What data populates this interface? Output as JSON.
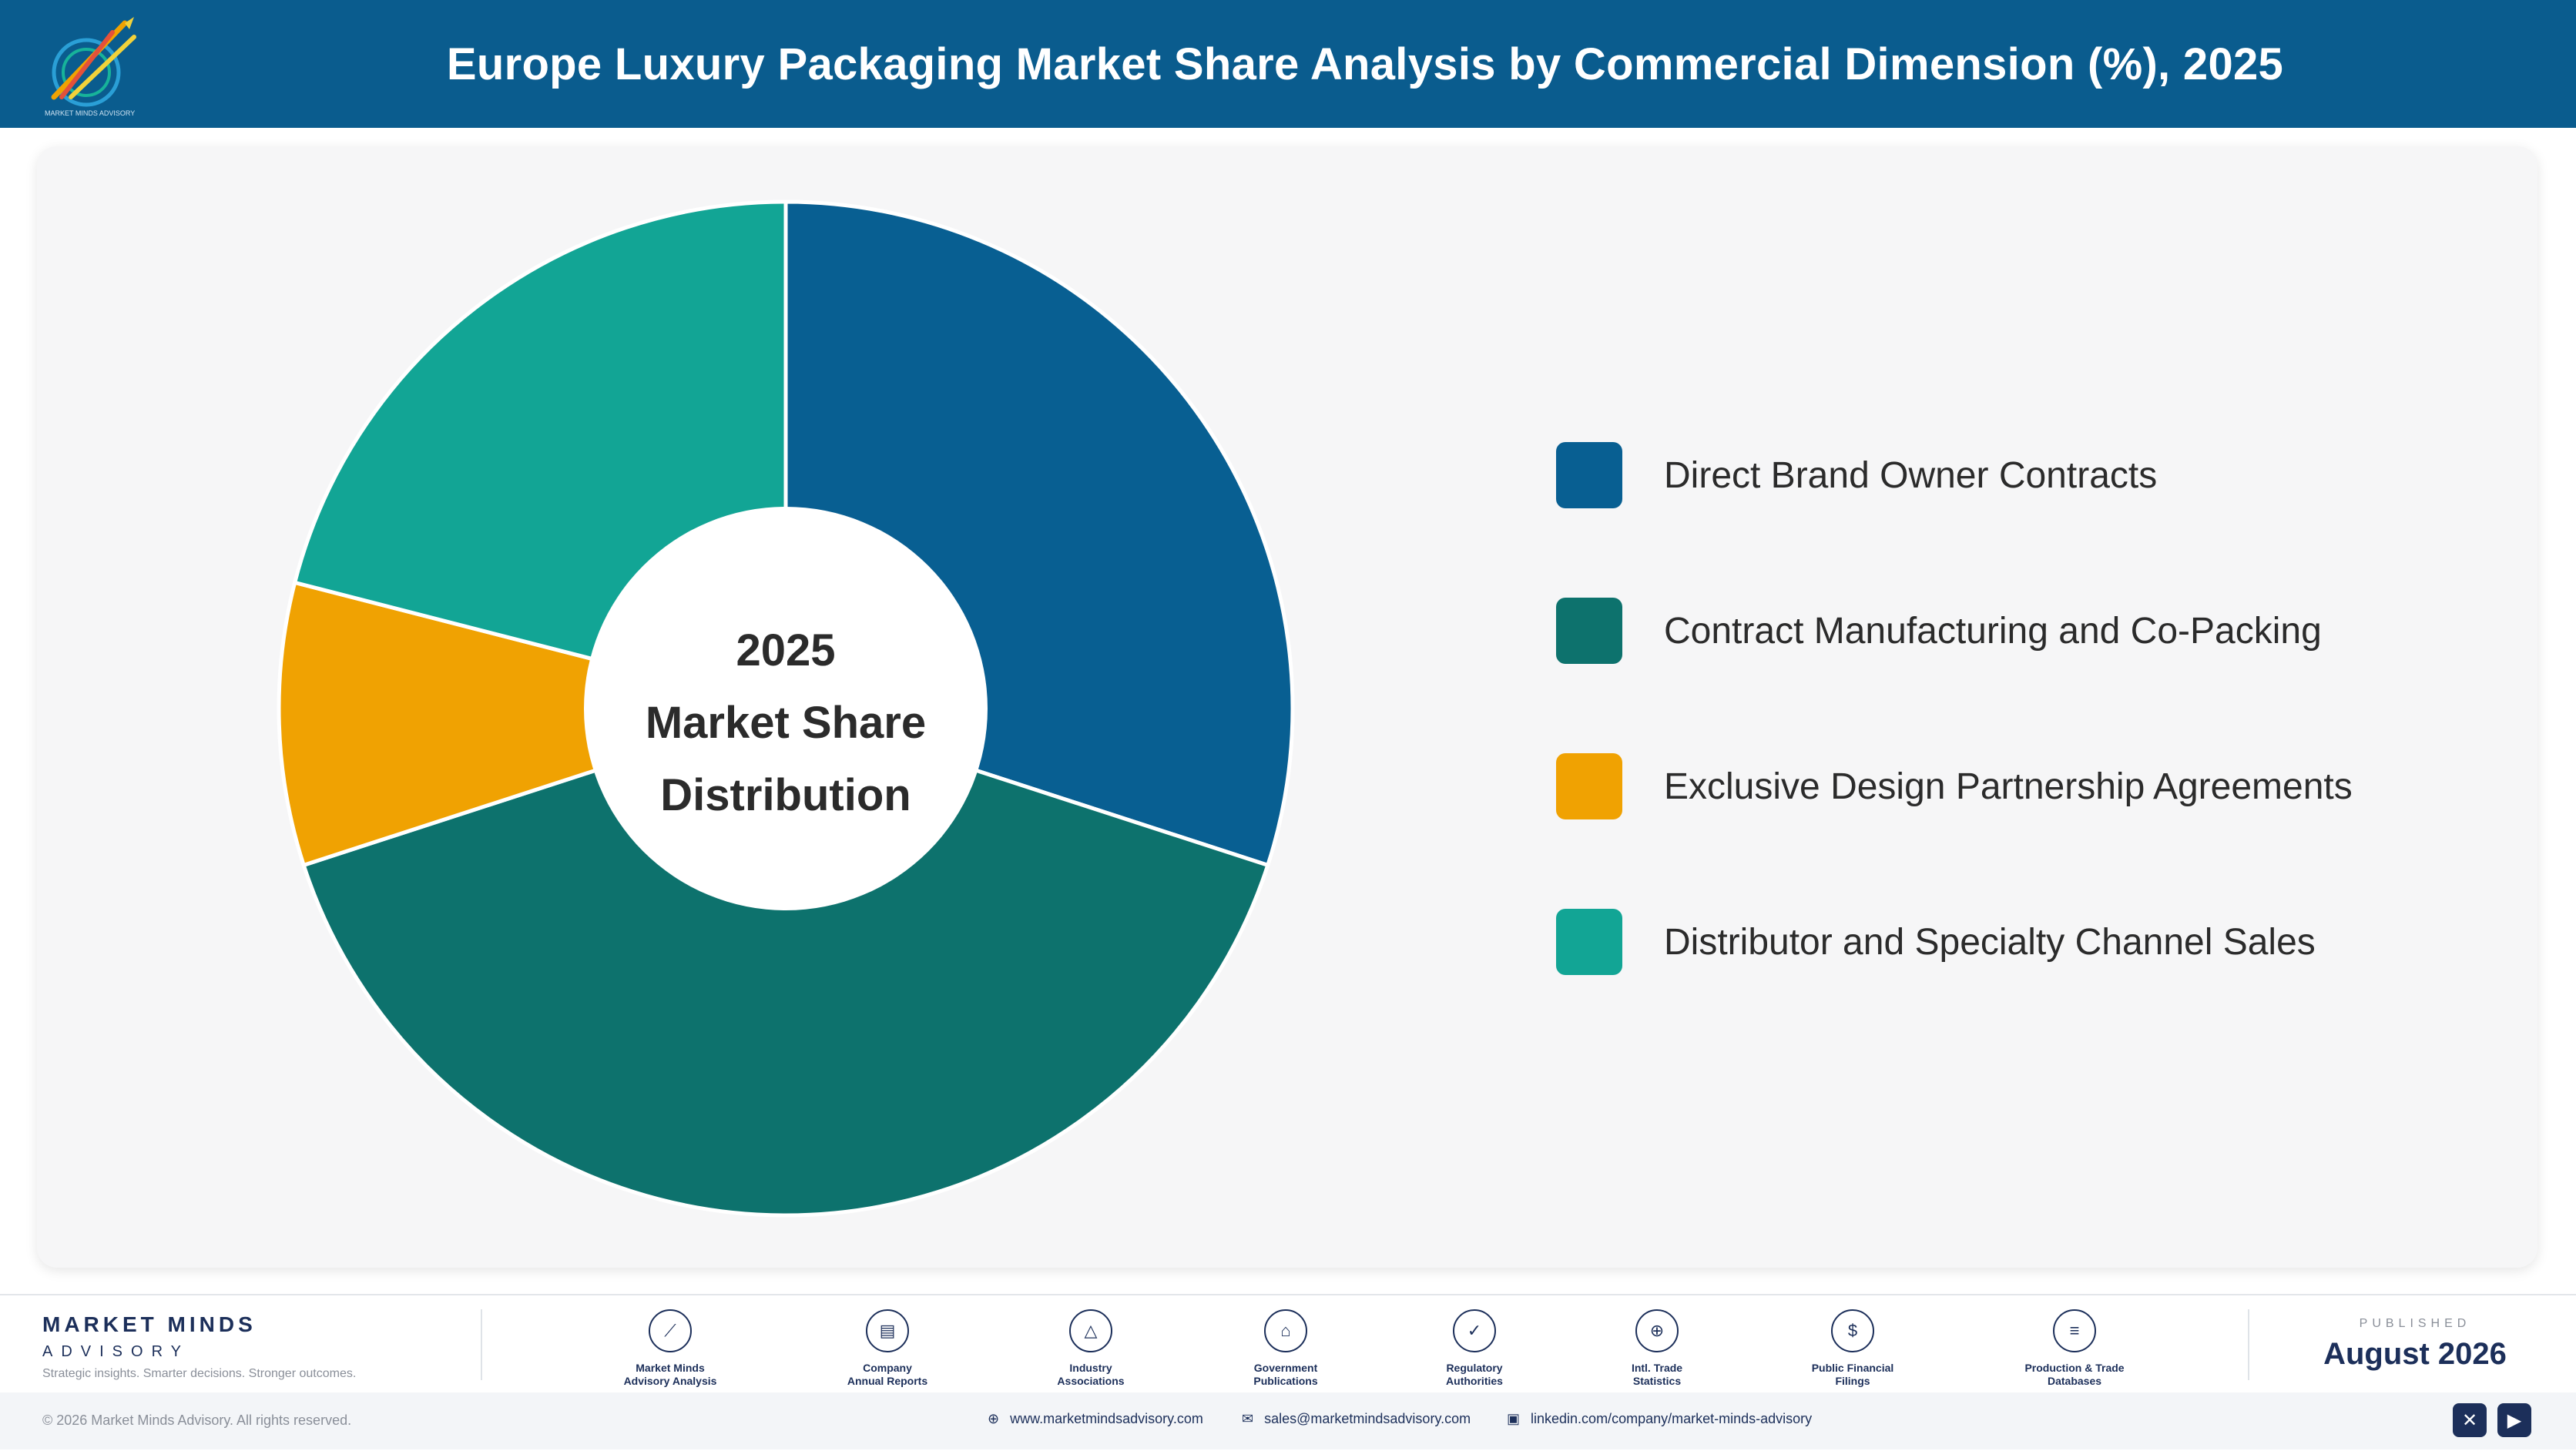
{
  "header": {
    "title": "Europe Luxury Packaging Market Share Analysis by Commercial Dimension (%), 2025",
    "logo_icon": "market-minds-logo",
    "logo_text": "MARKET MINDS ADVISORY"
  },
  "chart_data": {
    "type": "pie",
    "variant": "donut",
    "categories": [
      "Direct Brand Owner Contracts",
      "Contract Manufacturing and Co-Packing",
      "Exclusive Design Partnership Agreements",
      "Distributor and Specialty Channel Sales"
    ],
    "values": [
      30,
      40,
      9,
      21
    ],
    "colors": [
      "#085f92",
      "#0d726d",
      "#f0a202",
      "#12a595"
    ],
    "center_label": [
      "2025",
      "Market Share",
      "Distribution"
    ],
    "legend_position": "right"
  },
  "footer": {
    "brand_name": "MARKET MINDS",
    "brand_sub": "ADVISORY",
    "tagline": "Strategic insights. Smarter decisions. Stronger outcomes.",
    "sources": [
      {
        "label": "Market Minds\nAdvisory Analysis",
        "icon": "chart-line-icon",
        "glyph": "⟋"
      },
      {
        "label": "Company\nAnnual Reports",
        "icon": "document-icon",
        "glyph": "▤"
      },
      {
        "label": "Industry\nAssociations",
        "icon": "network-icon",
        "glyph": "△"
      },
      {
        "label": "Government\nPublications",
        "icon": "government-building-icon",
        "glyph": "⌂"
      },
      {
        "label": "Regulatory\nAuthorities",
        "icon": "shield-check-icon",
        "glyph": "✓"
      },
      {
        "label": "Intl. Trade\nStatistics",
        "icon": "globe-icon",
        "glyph": "⊕"
      },
      {
        "label": "Public Financial\nFilings",
        "icon": "dollar-coin-icon",
        "glyph": "$"
      },
      {
        "label": "Production & Trade\nDatabases",
        "icon": "database-icon",
        "glyph": "≡"
      }
    ],
    "published_label": "PUBLISHED",
    "published_date": "August 2026",
    "copyright": "© 2026 Market Minds Advisory. All rights reserved.",
    "website": "www.marketmindsadvisory.com",
    "email": "sales@marketmindsadvisory.com",
    "linkedin": "linkedin.com/company/market-minds-advisory",
    "social_icons": [
      "x-icon",
      "youtube-icon"
    ]
  }
}
